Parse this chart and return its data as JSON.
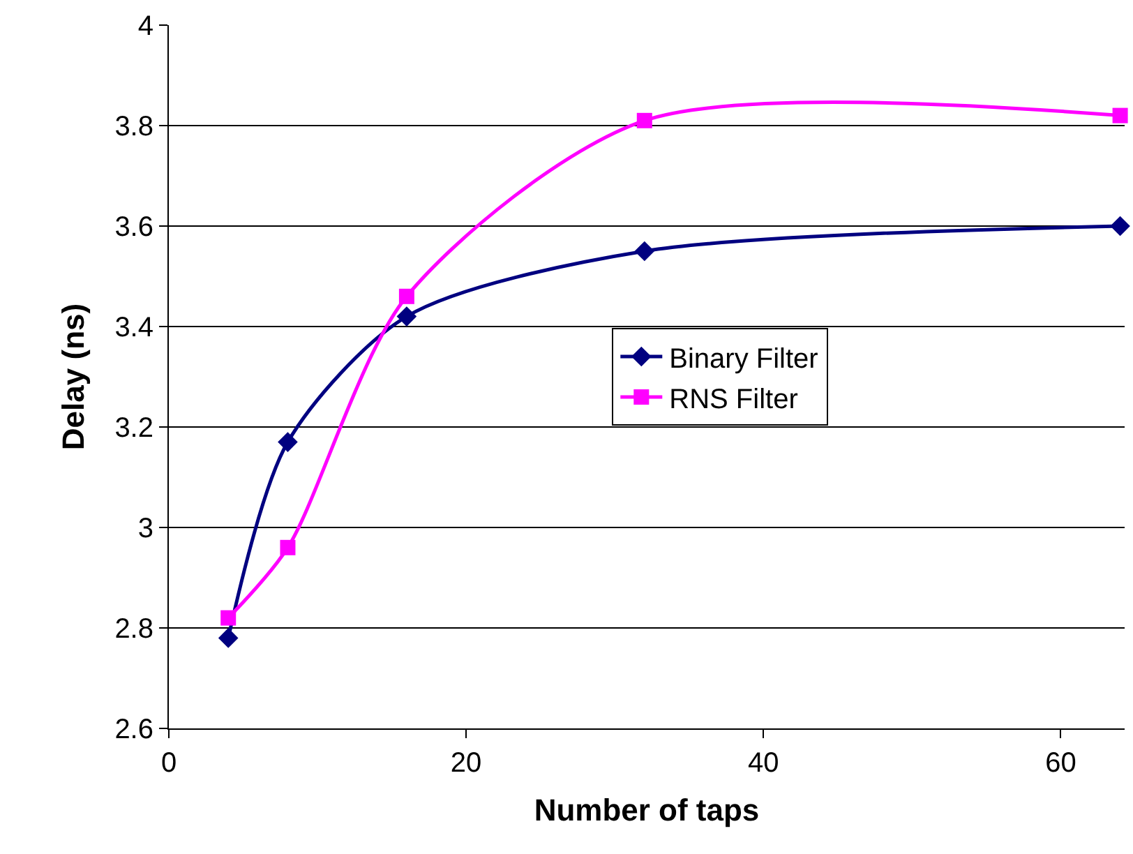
{
  "chart_data": {
    "type": "line",
    "xlabel": "Number of taps",
    "ylabel": "Delay (ns)",
    "xlim": [
      0,
      64.3
    ],
    "xticks": [
      0,
      20,
      40,
      60
    ],
    "ylim": [
      2.6,
      4
    ],
    "yticks": [
      2.6,
      2.8,
      3,
      3.2,
      3.4,
      3.6,
      3.8,
      4
    ],
    "grid": "y",
    "legend": "right",
    "line_style": "solid",
    "series": [
      {
        "name": "Binary Filter",
        "color": "#000080",
        "marker": "diamond",
        "x": [
          4,
          8,
          16,
          32,
          64
        ],
        "values": [
          2.78,
          3.17,
          3.42,
          3.55,
          3.6
        ]
      },
      {
        "name": "RNS Filter",
        "color": "#ff00ff",
        "marker": "square",
        "x": [
          4,
          8,
          16,
          32,
          64
        ],
        "values": [
          2.82,
          2.96,
          3.46,
          3.81,
          3.82
        ]
      }
    ]
  }
}
